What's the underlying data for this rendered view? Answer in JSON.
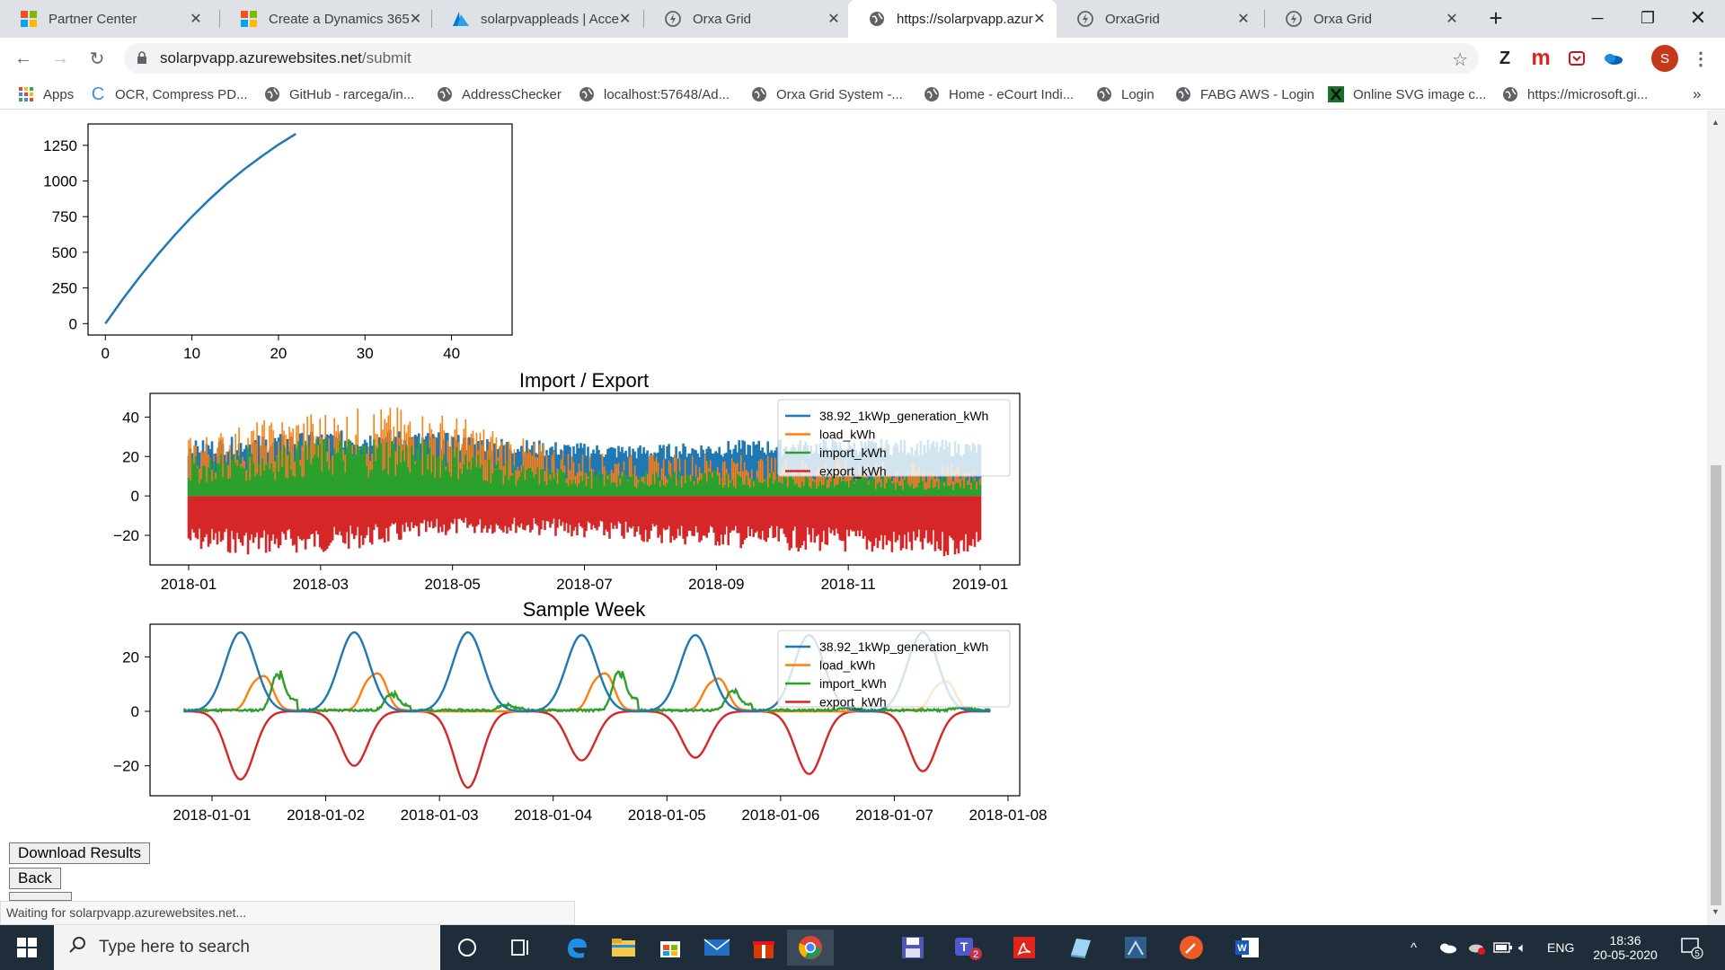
{
  "browser": {
    "tabs": [
      {
        "title": "Partner Center",
        "icon": "microsoft-icon"
      },
      {
        "title": "Create a Dynamics 365",
        "icon": "microsoft-icon"
      },
      {
        "title": "solarpvappleads | Acce",
        "icon": "azure-icon"
      },
      {
        "title": "Orxa Grid",
        "icon": "orxa-icon"
      },
      {
        "title": "https://solarpvapp.azur",
        "icon": "globe-icon",
        "active": true
      },
      {
        "title": "OrxaGrid",
        "icon": "orxa-icon"
      },
      {
        "title": "Orxa Grid",
        "icon": "orxa-icon"
      }
    ],
    "new_tab": "+",
    "url_host": "solarpvapp.azurewebsites.net",
    "url_path": "/submit",
    "extensions": [
      "Z",
      "m"
    ],
    "profile_initial": "S",
    "bookmarks": [
      {
        "label": "Apps",
        "icon": "apps-grid-icon"
      },
      {
        "label": "OCR, Compress PD...",
        "icon": "c-icon"
      },
      {
        "label": "GitHub - rarcega/in...",
        "icon": "globe-icon"
      },
      {
        "label": "AddressChecker",
        "icon": "globe-icon"
      },
      {
        "label": "localhost:57648/Ad...",
        "icon": "globe-icon"
      },
      {
        "label": "Orxa Grid System -...",
        "icon": "globe-icon"
      },
      {
        "label": "Home - eCourt Indi...",
        "icon": "globe-icon"
      },
      {
        "label": "Login",
        "icon": "globe-icon"
      },
      {
        "label": "FABG AWS - Login",
        "icon": "globe-icon"
      },
      {
        "label": "Online SVG image c...",
        "icon": "x-icon"
      },
      {
        "label": "https://microsoft.gi...",
        "icon": "globe-icon"
      }
    ],
    "bookmarks_overflow": "»",
    "status_text": "Waiting for solarpvapp.azurewebsites.net..."
  },
  "page": {
    "download_button": "Download Results",
    "back_button": "Back"
  },
  "colors": {
    "generation": "#1f77b4",
    "load": "#ff7f0e",
    "import": "#2ca02c",
    "export": "#d62728"
  },
  "chart_data": [
    {
      "type": "line",
      "title": "",
      "x": [
        0,
        2,
        4,
        6,
        8,
        10,
        12,
        14,
        16,
        18,
        20,
        22
      ],
      "series": [
        {
          "values": [
            0,
            170,
            330,
            480,
            620,
            750,
            870,
            980,
            1080,
            1170,
            1255,
            1330
          ]
        }
      ],
      "xticks": [
        "0",
        "10",
        "20",
        "30",
        "40"
      ],
      "yticks": [
        "0",
        "250",
        "500",
        "750",
        "1000",
        "1250"
      ],
      "xlim": [
        -2,
        47
      ],
      "ylim": [
        -80,
        1400
      ]
    },
    {
      "type": "area",
      "title": "Import / Export",
      "x_start": "2018-01",
      "x_end": "2019-01",
      "xticks": [
        "2018-01",
        "2018-03",
        "2018-05",
        "2018-07",
        "2018-09",
        "2018-11",
        "2019-01"
      ],
      "yticks": [
        "40",
        "20",
        "0",
        "−20"
      ],
      "ylim": [
        -35,
        52
      ],
      "legend_position": "upper right",
      "series": [
        {
          "name": "38.92_1kWp_generation_kWh",
          "monthly_peak_kWh": [
            28,
            31,
            33,
            34,
            32,
            29,
            27,
            26,
            28,
            29,
            29,
            29,
            28
          ]
        },
        {
          "name": "load_kWh",
          "monthly_peak_kWh": [
            30,
            38,
            44,
            46,
            42,
            30,
            22,
            21,
            22,
            20,
            18,
            17,
            16
          ]
        },
        {
          "name": "import_kWh",
          "monthly_peak_kWh": [
            20,
            25,
            30,
            32,
            27,
            16,
            13,
            13,
            13,
            12,
            11,
            10,
            10
          ]
        },
        {
          "name": "export_kWh",
          "monthly_trough_kWh": [
            -28,
            -30,
            -29,
            -25,
            -20,
            -19,
            -22,
            -24,
            -26,
            -28,
            -29,
            -31,
            -31
          ]
        }
      ]
    },
    {
      "type": "line",
      "title": "Sample Week",
      "xticks": [
        "2018-01-01",
        "2018-01-02",
        "2018-01-03",
        "2018-01-04",
        "2018-01-05",
        "2018-01-06",
        "2018-01-07",
        "2018-01-08"
      ],
      "yticks": [
        "20",
        "0",
        "−20"
      ],
      "ylim": [
        -31,
        32
      ],
      "legend_position": "upper right",
      "series": [
        {
          "name": "38.92_1kWp_generation_kWh",
          "daily_peak_kWh": [
            29,
            29,
            29,
            28,
            28,
            28,
            29
          ]
        },
        {
          "name": "load_kWh",
          "daily_peak_kWh": [
            13,
            14,
            0,
            14,
            12,
            0,
            11
          ]
        },
        {
          "name": "import_kWh",
          "daily_peak_kWh": [
            13,
            6,
            2,
            14,
            7,
            1,
            1
          ]
        },
        {
          "name": "export_kWh",
          "daily_trough_kWh": [
            -25,
            -20,
            -28,
            -18,
            -17,
            -23,
            -22
          ]
        }
      ]
    }
  ],
  "taskbar": {
    "search_placeholder": "Type here to search",
    "apps": [
      "cortana-icon",
      "task-view-icon",
      "edge-icon",
      "file-explorer-icon",
      "store-icon",
      "mail-icon",
      "gift-icon",
      "chrome-icon",
      "save-icon",
      "teams-icon",
      "acrobat-icon",
      "notes-icon",
      "ssms-icon",
      "postman-icon",
      "word-icon"
    ],
    "teams_badge": "2",
    "language": "ENG",
    "time": "18:36",
    "date": "20-05-2020",
    "notification_count": "5"
  }
}
